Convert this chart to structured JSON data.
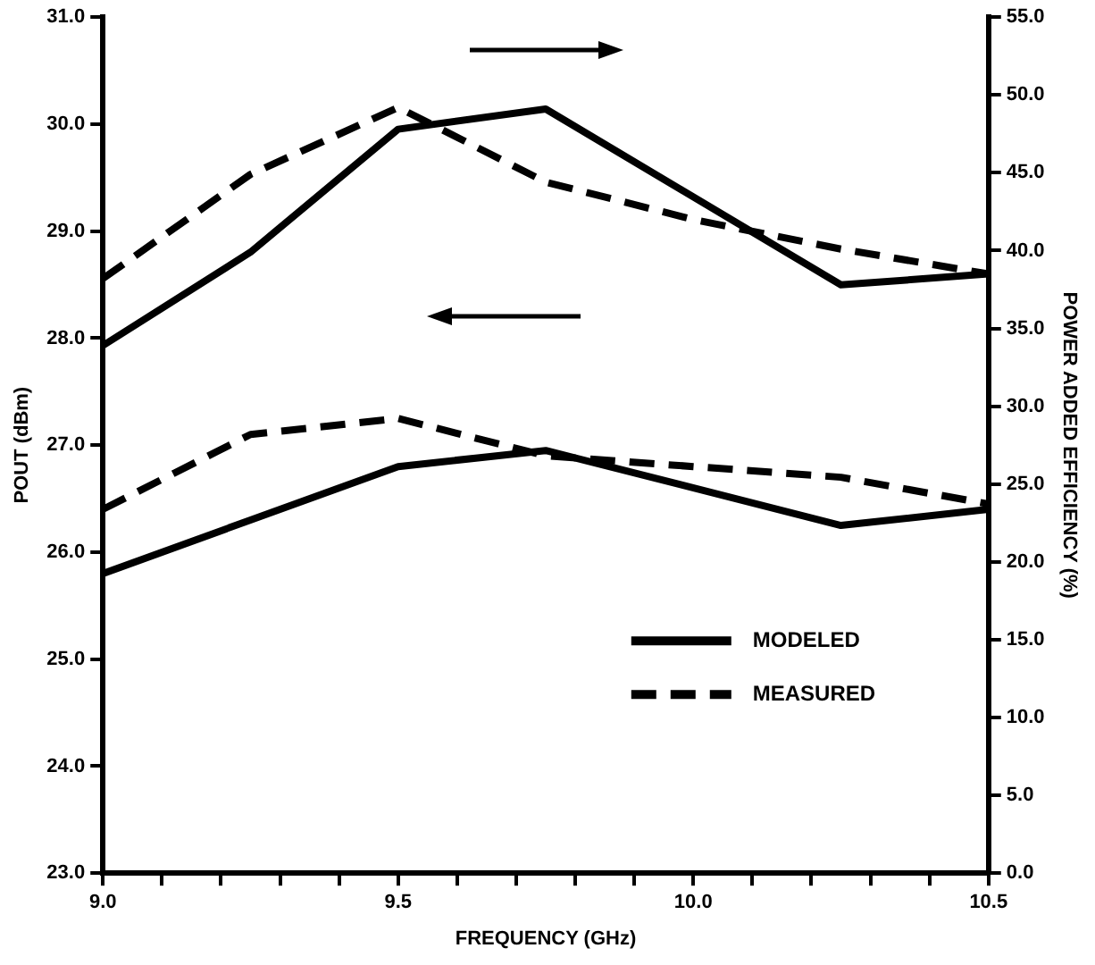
{
  "chart_data": {
    "type": "line",
    "xlabel": "FREQUENCY (GHz)",
    "ylabel": "POUT (dBm)",
    "y2label": "POWER ADDED EFFICIENCY (%)",
    "xlim": [
      9.0,
      10.5
    ],
    "xticks": [
      {
        "value": 9.0,
        "label": "9.0"
      },
      {
        "value": 9.1,
        "label": null
      },
      {
        "value": 9.2,
        "label": null
      },
      {
        "value": 9.3,
        "label": null
      },
      {
        "value": 9.4,
        "label": null
      },
      {
        "value": 9.5,
        "label": "9.5"
      },
      {
        "value": 9.6,
        "label": null
      },
      {
        "value": 9.7,
        "label": null
      },
      {
        "value": 9.8,
        "label": null
      },
      {
        "value": 9.9,
        "label": null
      },
      {
        "value": 10.0,
        "label": "10.0"
      },
      {
        "value": 10.1,
        "label": null
      },
      {
        "value": 10.2,
        "label": null
      },
      {
        "value": 10.3,
        "label": null
      },
      {
        "value": 10.4,
        "label": null
      },
      {
        "value": 10.5,
        "label": "10.5"
      }
    ],
    "ylim": [
      23,
      31
    ],
    "yticks": [
      {
        "value": 23,
        "label": "23.0"
      },
      {
        "value": 24,
        "label": "24.0"
      },
      {
        "value": 25,
        "label": "25.0"
      },
      {
        "value": 26,
        "label": "26.0"
      },
      {
        "value": 27,
        "label": "27.0"
      },
      {
        "value": 28,
        "label": "28.0"
      },
      {
        "value": 29,
        "label": "29.0"
      },
      {
        "value": 30,
        "label": "30.0"
      },
      {
        "value": 31,
        "label": "31.0"
      }
    ],
    "y2lim": [
      0,
      55
    ],
    "y2ticks": [
      {
        "value": 0,
        "label": "0.0"
      },
      {
        "value": 5,
        "label": "5.0"
      },
      {
        "value": 10,
        "label": "10.0"
      },
      {
        "value": 15,
        "label": "15.0"
      },
      {
        "value": 20,
        "label": "20.0"
      },
      {
        "value": 25,
        "label": "25.0"
      },
      {
        "value": 30,
        "label": "30.0"
      },
      {
        "value": 35,
        "label": "35.0"
      },
      {
        "value": 40,
        "label": "40.0"
      },
      {
        "value": 45,
        "label": "45.0"
      },
      {
        "value": 50,
        "label": "50.0"
      },
      {
        "value": 55,
        "label": "55.0"
      }
    ],
    "series": [
      {
        "name": "MODELED",
        "color": "#000000",
        "line_style": "solid",
        "x": [
          9.0,
          9.25,
          9.5,
          9.75,
          10.25,
          10.5
        ],
        "values": [
          25.8,
          26.3,
          26.8,
          26.95,
          26.25,
          26.4
        ]
      },
      {
        "name": "MEASURED",
        "color": "#000000",
        "line_style": "dashed",
        "x": [
          9.0,
          9.25,
          9.5,
          9.75,
          10.0,
          10.25,
          10.5
        ],
        "values": [
          26.4,
          27.1,
          27.25,
          26.9,
          26.8,
          26.7,
          26.45
        ]
      },
      {
        "color": "#000000",
        "line_style": "solid",
        "axis": "y2",
        "x": [
          9.0,
          9.25,
          9.5,
          9.75,
          10.25,
          10.5
        ],
        "values": [
          33.9,
          39.9,
          47.8,
          49.1,
          37.8,
          38.5
        ]
      },
      {
        "color": "#000000",
        "line_style": "dashed",
        "axis": "y2",
        "x": [
          9.0,
          9.25,
          9.5,
          9.75,
          10.0,
          10.25,
          10.5
        ],
        "values": [
          38.2,
          44.9,
          49.2,
          44.4,
          42.0,
          40.1,
          38.5
        ]
      }
    ],
    "marker": "none",
    "grid": false,
    "legend": "bottom right"
  }
}
